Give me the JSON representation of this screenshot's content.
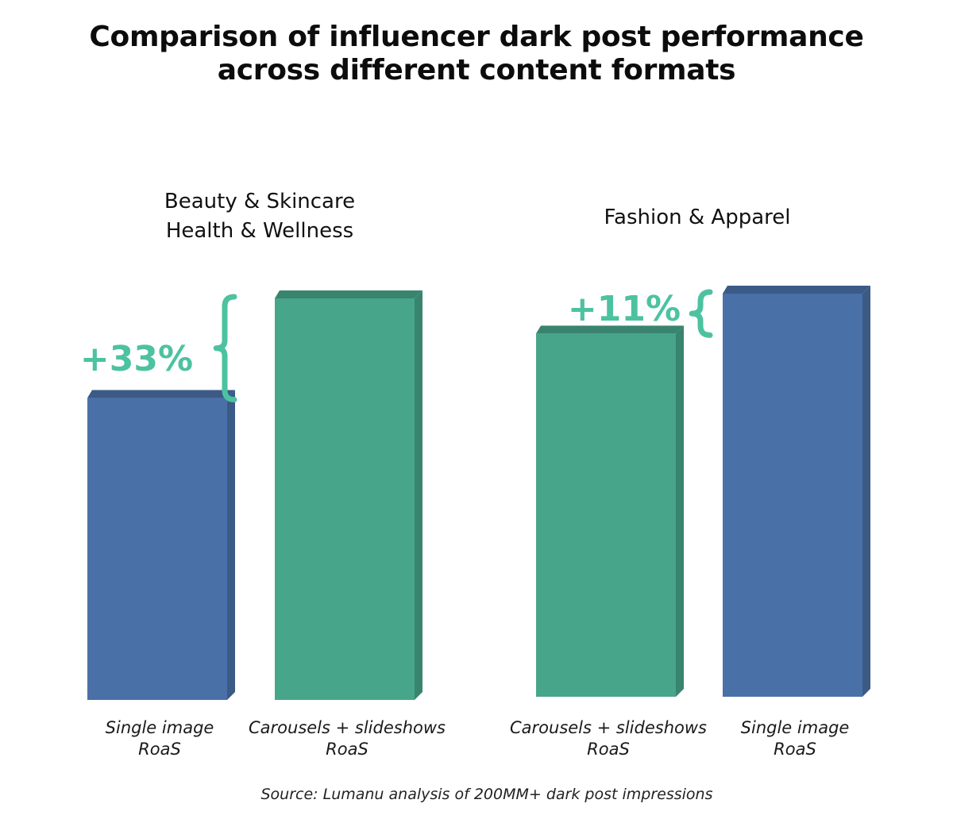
{
  "title_lines": [
    "Comparison of influencer dark post performance",
    "across different content formats"
  ],
  "source": "Source: Lumanu analysis of 200MM+ dark post impressions",
  "colors": {
    "single_image": "#4a70a8",
    "carousels": "#47a58a",
    "annotation": "#4dc2a0"
  },
  "chart_data": {
    "type": "bar",
    "groups": [
      {
        "title_lines": [
          "Beauty & Skincare",
          "Health & Wellness"
        ],
        "bars": [
          {
            "label_lines": [
              "Single image",
              "RoaS"
            ],
            "value": 100,
            "color": "#4a70a8"
          },
          {
            "label_lines": [
              "Carousels + slideshows",
              "RoaS"
            ],
            "value": 133,
            "color": "#47a58a"
          }
        ],
        "annotation": "+33%"
      },
      {
        "title_lines": [
          "Fashion & Apparel"
        ],
        "bars": [
          {
            "label_lines": [
              "Carousels + slideshows",
              "RoaS"
            ],
            "value": 100,
            "color": "#47a58a"
          },
          {
            "label_lines": [
              "Single image",
              "RoaS"
            ],
            "value": 111,
            "color": "#4a70a8"
          }
        ],
        "annotation": "+11%"
      }
    ]
  }
}
